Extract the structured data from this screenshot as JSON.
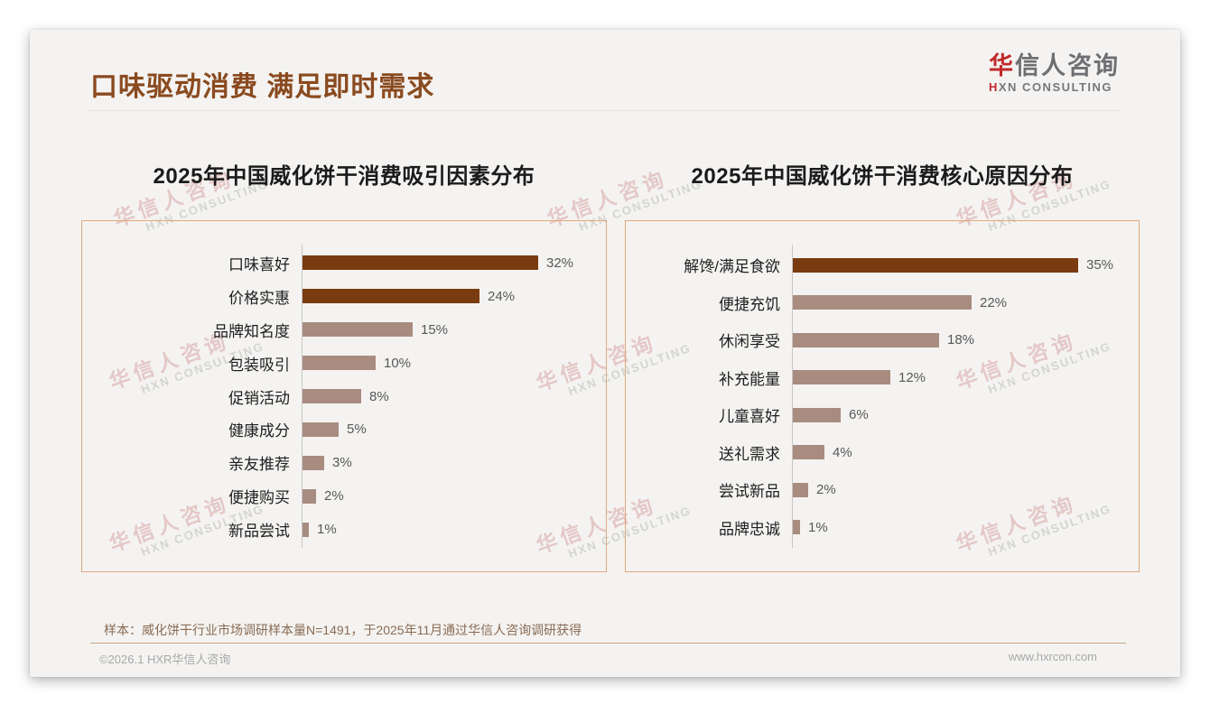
{
  "header": {
    "title": "口味驱动消费 满足即时需求",
    "logo": {
      "zh_first": "华",
      "zh_rest": "信人咨询",
      "en_first": "H",
      "en_rest": "XN CONSULTING"
    }
  },
  "watermark": {
    "line1": "华信人咨询",
    "line2": "HXN CONSULTING"
  },
  "chart_data": [
    {
      "type": "bar",
      "orientation": "horizontal",
      "title": "2025年中国威化饼干消费吸引因素分布",
      "categories": [
        "口味喜好",
        "价格实惠",
        "品牌知名度",
        "包装吸引",
        "促销活动",
        "健康成分",
        "亲友推荐",
        "便捷购买",
        "新品尝试"
      ],
      "values": [
        32,
        24,
        15,
        10,
        8,
        5,
        3,
        2,
        1
      ],
      "unit": "%",
      "value_labels": [
        "32%",
        "24%",
        "15%",
        "10%",
        "8%",
        "5%",
        "3%",
        "2%",
        "1%"
      ],
      "highlight_count": 2,
      "colors": {
        "highlight": "#7b3b10",
        "normal": "#a98c80"
      },
      "xlim": [
        0,
        40
      ],
      "grid": false,
      "legend": false
    },
    {
      "type": "bar",
      "orientation": "horizontal",
      "title": "2025年中国威化饼干消费核心原因分布",
      "categories": [
        "解馋/满足食欲",
        "便捷充饥",
        "休闲享受",
        "补充能量",
        "儿童喜好",
        "送礼需求",
        "尝试新品",
        "品牌忠诚"
      ],
      "values": [
        35,
        22,
        18,
        12,
        6,
        4,
        2,
        1
      ],
      "unit": "%",
      "value_labels": [
        "35%",
        "22%",
        "18%",
        "12%",
        "6%",
        "4%",
        "2%",
        "1%"
      ],
      "highlight_count": 1,
      "colors": {
        "highlight": "#7b3b10",
        "normal": "#a98c80"
      },
      "xlim": [
        0,
        40
      ],
      "grid": false,
      "legend": false
    }
  ],
  "footnote": "样本：威化饼干行业市场调研样本量N=1491，于2025年11月通过华信人咨询调研获得",
  "footer": {
    "left": "©2026.1 HXR华信人咨询",
    "right": "www.hxrcon.com"
  }
}
